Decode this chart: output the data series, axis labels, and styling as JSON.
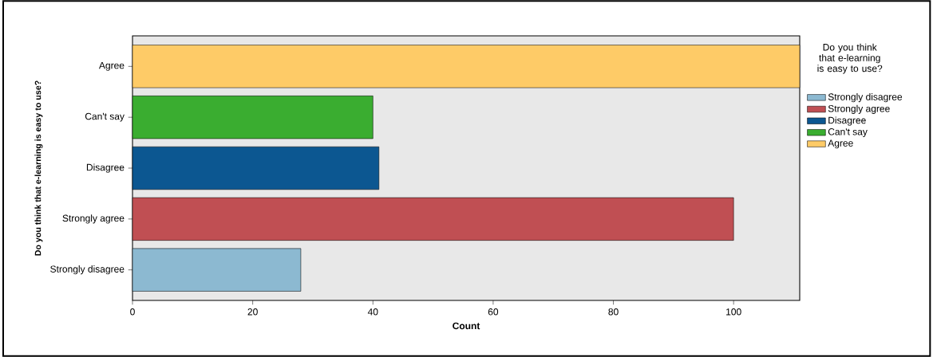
{
  "chart_data": {
    "type": "bar",
    "orientation": "horizontal",
    "xlabel": "Count",
    "ylabel": "Do you think that e-learning is easy to use?",
    "legend_title": "Do you think that e-learning is easy to use?",
    "categories": [
      "Agree",
      "Can't say",
      "Disagree",
      "Strongly agree",
      "Strongly disagree"
    ],
    "series": [
      {
        "name": "Strongly disagree",
        "color": "#8cb9d1",
        "values": [
          null,
          null,
          null,
          null,
          28
        ]
      },
      {
        "name": "Strongly agree",
        "color": "#c04f53",
        "values": [
          null,
          null,
          null,
          100,
          null
        ]
      },
      {
        "name": "Disagree",
        "color": "#0c5791",
        "values": [
          null,
          null,
          41,
          null,
          null
        ]
      },
      {
        "name": "Can't say",
        "color": "#3aad30",
        "values": [
          null,
          40,
          null,
          null,
          null
        ]
      },
      {
        "name": "Agree",
        "color": "#fecb67",
        "values": [
          111,
          null,
          null,
          null,
          null
        ]
      }
    ],
    "xlim": [
      0,
      111
    ],
    "xticks": [
      0,
      20,
      40,
      60,
      80,
      100
    ],
    "grid": false,
    "legend": "right"
  }
}
